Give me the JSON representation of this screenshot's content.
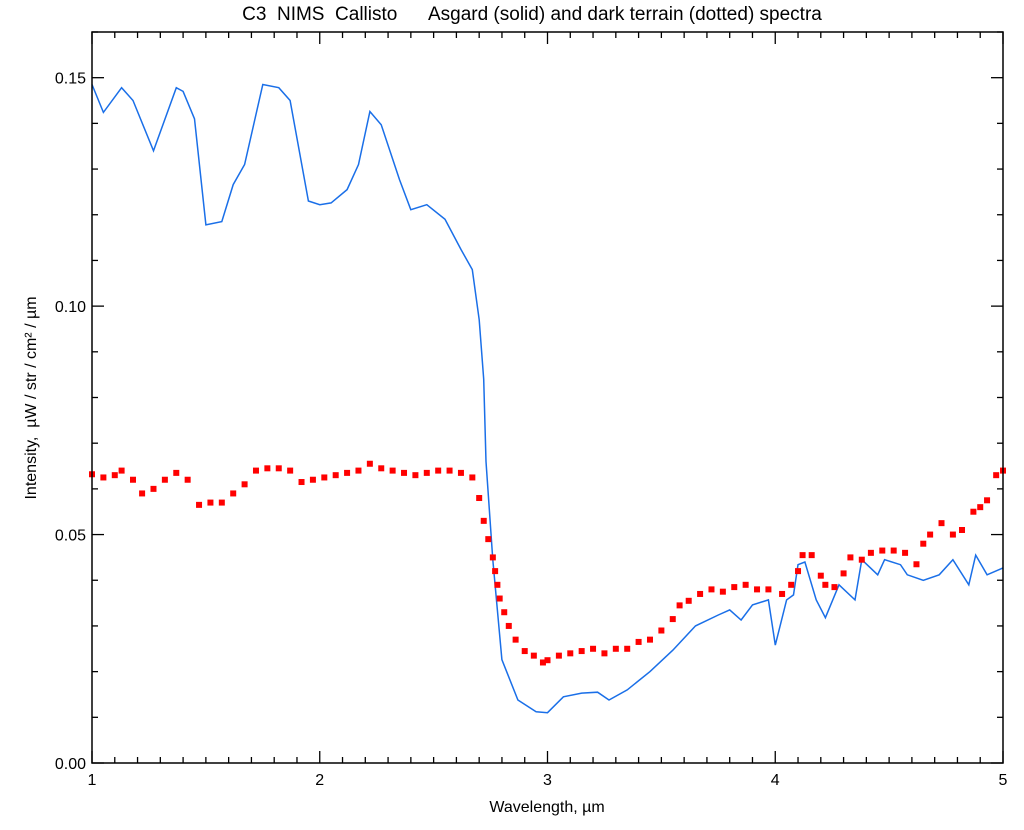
{
  "chart_data": {
    "type": "line",
    "title": "C3  NIMS  Callisto      Asgard (solid) and dark terrain (dotted) spectra",
    "xlabel": "Wavelength, µm",
    "ylabel": "Intensity,  µW / str / cm² / µm",
    "xlim": [
      1,
      5
    ],
    "ylim": [
      0,
      0.16
    ],
    "xticks": [
      1,
      2,
      3,
      4,
      5
    ],
    "xtick_labels": [
      "1",
      "2",
      "3",
      "4",
      "5"
    ],
    "yticks": [
      0,
      0.05,
      0.1,
      0.15
    ],
    "ytick_labels": [
      "0.00",
      "0.05",
      "0.10",
      "0.15"
    ],
    "grid": false,
    "series": [
      {
        "name": "Asgard (solid)",
        "style": "solid",
        "color": "#1a6fe8",
        "x": [
          1.0,
          1.05,
          1.13,
          1.18,
          1.27,
          1.37,
          1.4,
          1.45,
          1.5,
          1.57,
          1.62,
          1.67,
          1.75,
          1.82,
          1.87,
          1.95,
          2.0,
          2.05,
          2.12,
          2.17,
          2.22,
          2.27,
          2.35,
          2.4,
          2.47,
          2.55,
          2.62,
          2.67,
          2.7,
          2.72,
          2.73,
          2.76,
          2.8,
          2.87,
          2.95,
          3.0,
          3.07,
          3.15,
          3.22,
          3.27,
          3.35,
          3.45,
          3.55,
          3.65,
          3.75,
          3.8,
          3.85,
          3.9,
          3.97,
          4.0,
          4.05,
          4.08,
          4.1,
          4.13,
          4.18,
          4.22,
          4.28,
          4.35,
          4.38,
          4.45,
          4.48,
          4.55,
          4.58,
          4.65,
          4.72,
          4.78,
          4.85,
          4.88,
          4.93,
          5.0
        ],
        "y": [
          0.1485,
          0.1424,
          0.1478,
          0.145,
          0.134,
          0.1478,
          0.147,
          0.141,
          0.1178,
          0.1185,
          0.1266,
          0.131,
          0.1485,
          0.1478,
          0.145,
          0.123,
          0.1222,
          0.1226,
          0.1255,
          0.131,
          0.1426,
          0.1397,
          0.1277,
          0.1211,
          0.1222,
          0.119,
          0.1124,
          0.108,
          0.097,
          0.084,
          0.066,
          0.0445,
          0.0226,
          0.0138,
          0.0112,
          0.011,
          0.0145,
          0.0153,
          0.0155,
          0.0138,
          0.016,
          0.02,
          0.0247,
          0.03,
          0.0324,
          0.0335,
          0.0313,
          0.0346,
          0.0357,
          0.0258,
          0.0357,
          0.0368,
          0.0434,
          0.044,
          0.0357,
          0.0318,
          0.039,
          0.0357,
          0.0445,
          0.0412,
          0.0445,
          0.0434,
          0.0412,
          0.04,
          0.0412,
          0.0445,
          0.039,
          0.0455,
          0.0412,
          0.0427
        ]
      },
      {
        "name": "dark terrain (dotted)",
        "style": "dotted",
        "color": "#ff0000",
        "x": [
          1.0,
          1.05,
          1.1,
          1.13,
          1.18,
          1.22,
          1.27,
          1.32,
          1.37,
          1.42,
          1.47,
          1.52,
          1.57,
          1.62,
          1.67,
          1.72,
          1.77,
          1.82,
          1.87,
          1.92,
          1.97,
          2.02,
          2.07,
          2.12,
          2.17,
          2.22,
          2.27,
          2.32,
          2.37,
          2.42,
          2.47,
          2.52,
          2.57,
          2.62,
          2.67,
          2.7,
          2.72,
          2.74,
          2.76,
          2.77,
          2.78,
          2.79,
          2.81,
          2.83,
          2.86,
          2.9,
          2.94,
          2.98,
          3.0,
          3.05,
          3.1,
          3.15,
          3.2,
          3.25,
          3.3,
          3.35,
          3.4,
          3.45,
          3.5,
          3.55,
          3.58,
          3.62,
          3.67,
          3.72,
          3.77,
          3.82,
          3.87,
          3.92,
          3.97,
          4.03,
          4.07,
          4.1,
          4.12,
          4.16,
          4.2,
          4.22,
          4.26,
          4.3,
          4.33,
          4.38,
          4.42,
          4.47,
          4.52,
          4.57,
          4.62,
          4.65,
          4.68,
          4.73,
          4.78,
          4.82,
          4.87,
          4.9,
          4.93,
          4.97,
          5.0
        ],
        "y": [
          0.0632,
          0.0625,
          0.063,
          0.064,
          0.062,
          0.059,
          0.06,
          0.062,
          0.0635,
          0.062,
          0.0565,
          0.057,
          0.057,
          0.059,
          0.061,
          0.064,
          0.0645,
          0.0645,
          0.064,
          0.0615,
          0.062,
          0.0625,
          0.063,
          0.0635,
          0.064,
          0.0655,
          0.0645,
          0.064,
          0.0635,
          0.063,
          0.0635,
          0.064,
          0.064,
          0.0635,
          0.0625,
          0.058,
          0.053,
          0.049,
          0.045,
          0.042,
          0.039,
          0.036,
          0.033,
          0.03,
          0.027,
          0.0245,
          0.0235,
          0.022,
          0.0225,
          0.0235,
          0.024,
          0.0245,
          0.025,
          0.024,
          0.025,
          0.025,
          0.0265,
          0.027,
          0.029,
          0.0315,
          0.0345,
          0.0355,
          0.037,
          0.038,
          0.0375,
          0.0385,
          0.039,
          0.038,
          0.038,
          0.037,
          0.039,
          0.042,
          0.0455,
          0.0455,
          0.041,
          0.039,
          0.0385,
          0.0415,
          0.045,
          0.0445,
          0.046,
          0.0465,
          0.0465,
          0.046,
          0.0435,
          0.048,
          0.05,
          0.0525,
          0.05,
          0.051,
          0.055,
          0.056,
          0.0575,
          0.063,
          0.064
        ]
      }
    ]
  }
}
